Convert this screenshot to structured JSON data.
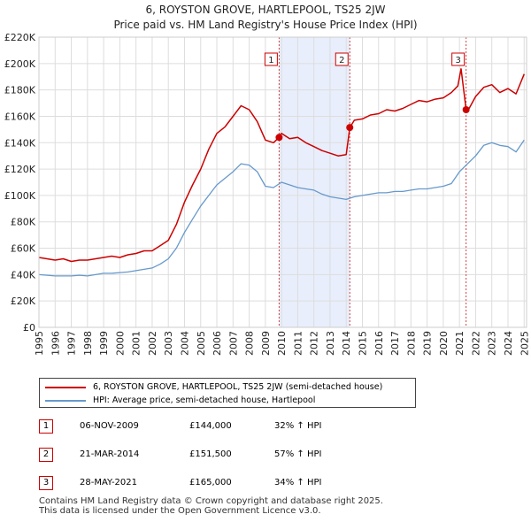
{
  "chart_data": {
    "type": "line",
    "title": "6, ROYSTON GROVE, HARTLEPOOL, TS25 2JW",
    "subtitle": "Price paid vs. HM Land Registry's House Price Index (HPI)",
    "xlim": [
      1995,
      2025.15
    ],
    "ylim": [
      0,
      220000
    ],
    "y_ticks": [
      0,
      20000,
      40000,
      60000,
      80000,
      100000,
      120000,
      140000,
      160000,
      180000,
      200000,
      220000
    ],
    "y_tick_labels": [
      "£0",
      "£20K",
      "£40K",
      "£60K",
      "£80K",
      "£100K",
      "£120K",
      "£140K",
      "£160K",
      "£180K",
      "£200K",
      "£220K"
    ],
    "x_ticks": [
      "1995",
      "1996",
      "1997",
      "1998",
      "1999",
      "2000",
      "2001",
      "2002",
      "2003",
      "2004",
      "2005",
      "2006",
      "2007",
      "2008",
      "2009",
      "2010",
      "2011",
      "2012",
      "2013",
      "2014",
      "2015",
      "2016",
      "2017",
      "2018",
      "2019",
      "2020",
      "2021",
      "2022",
      "2023",
      "2024",
      "2025"
    ],
    "grid": true,
    "colors": {
      "property": "#cc0000",
      "hpi": "#6699cc",
      "shade": "#e8eefb",
      "marker_line": "#cc4444"
    },
    "series": [
      {
        "name": "6, ROYSTON GROVE, HARTLEPOOL, TS25 2JW (semi-detached house)",
        "x": [
          1995.0,
          1995.5,
          1996.0,
          1996.5,
          1997.0,
          1997.5,
          1998.0,
          1998.5,
          1999.0,
          1999.5,
          2000.0,
          2000.5,
          2001.0,
          2001.5,
          2002.0,
          2002.5,
          2003.0,
          2003.5,
          2004.0,
          2004.5,
          2005.0,
          2005.5,
          2006.0,
          2006.5,
          2007.0,
          2007.5,
          2008.0,
          2008.5,
          2009.0,
          2009.5,
          2009.85,
          2010.0,
          2010.5,
          2011.0,
          2011.5,
          2012.0,
          2012.5,
          2013.0,
          2013.5,
          2014.0,
          2014.22,
          2014.5,
          2015.0,
          2015.5,
          2016.0,
          2016.5,
          2017.0,
          2017.5,
          2018.0,
          2018.5,
          2019.0,
          2019.5,
          2020.0,
          2020.5,
          2020.9,
          2021.1,
          2021.41,
          2021.6,
          2022.0,
          2022.5,
          2023.0,
          2023.5,
          2024.0,
          2024.5,
          2025.0
        ],
        "values": [
          53000,
          52000,
          51000,
          52000,
          50000,
          51000,
          51000,
          52000,
          53000,
          54000,
          53000,
          55000,
          56000,
          58000,
          58000,
          62000,
          66000,
          78000,
          95000,
          108000,
          120000,
          135000,
          147000,
          152000,
          160000,
          168000,
          165000,
          156000,
          142000,
          140000,
          144000,
          147000,
          143000,
          144000,
          140000,
          137000,
          134000,
          132000,
          130000,
          131000,
          151500,
          157000,
          158000,
          161000,
          162000,
          165000,
          164000,
          166000,
          169000,
          172000,
          171000,
          173000,
          174000,
          178000,
          183000,
          196000,
          165000,
          166000,
          175000,
          182000,
          184000,
          178000,
          181000,
          177000,
          192000
        ]
      },
      {
        "name": "HPI: Average price, semi-detached house, Hartlepool",
        "x": [
          1995.0,
          1995.5,
          1996.0,
          1996.5,
          1997.0,
          1997.5,
          1998.0,
          1998.5,
          1999.0,
          1999.5,
          2000.0,
          2000.5,
          2001.0,
          2001.5,
          2002.0,
          2002.5,
          2003.0,
          2003.5,
          2004.0,
          2004.5,
          2005.0,
          2005.5,
          2006.0,
          2006.5,
          2007.0,
          2007.5,
          2008.0,
          2008.5,
          2009.0,
          2009.5,
          2010.0,
          2010.5,
          2011.0,
          2011.5,
          2012.0,
          2012.5,
          2013.0,
          2013.5,
          2014.0,
          2014.5,
          2015.0,
          2015.5,
          2016.0,
          2016.5,
          2017.0,
          2017.5,
          2018.0,
          2018.5,
          2019.0,
          2019.5,
          2020.0,
          2020.5,
          2021.0,
          2021.5,
          2022.0,
          2022.5,
          2023.0,
          2023.5,
          2024.0,
          2024.5,
          2025.0
        ],
        "values": [
          40000,
          39500,
          39000,
          39000,
          39000,
          39500,
          39000,
          40000,
          41000,
          41000,
          41500,
          42000,
          43000,
          44000,
          45000,
          48000,
          52000,
          60000,
          72000,
          82000,
          92000,
          100000,
          108000,
          113000,
          118000,
          124000,
          123000,
          118000,
          107000,
          106000,
          110000,
          108000,
          106000,
          105000,
          104000,
          101000,
          99000,
          98000,
          97000,
          99000,
          100000,
          101000,
          102000,
          102000,
          103000,
          103000,
          104000,
          105000,
          105000,
          106000,
          107000,
          109000,
          118000,
          124000,
          130000,
          138000,
          140000,
          138000,
          137000,
          133000,
          142000
        ]
      }
    ],
    "markers": [
      {
        "label": "1",
        "x": 2009.85,
        "value": 144000
      },
      {
        "label": "2",
        "x": 2014.22,
        "value": 151500
      },
      {
        "label": "3",
        "x": 2021.41,
        "value": 165000
      }
    ],
    "shaded_ranges": [
      [
        2009.85,
        2014.22
      ]
    ]
  },
  "legend": {
    "property_label": "6, ROYSTON GROVE, HARTLEPOOL, TS25 2JW (semi-detached house)",
    "hpi_label": "HPI: Average price, semi-detached house, Hartlepool"
  },
  "transactions": [
    {
      "num": "1",
      "date": "06-NOV-2009",
      "price": "£144,000",
      "hpi": "32% ↑ HPI"
    },
    {
      "num": "2",
      "date": "21-MAR-2014",
      "price": "£151,500",
      "hpi": "57% ↑ HPI"
    },
    {
      "num": "3",
      "date": "28-MAY-2021",
      "price": "£165,000",
      "hpi": "34% ↑ HPI"
    }
  ],
  "footer": {
    "line1": "Contains HM Land Registry data © Crown copyright and database right 2025.",
    "line2": "This data is licensed under the Open Government Licence v3.0."
  }
}
